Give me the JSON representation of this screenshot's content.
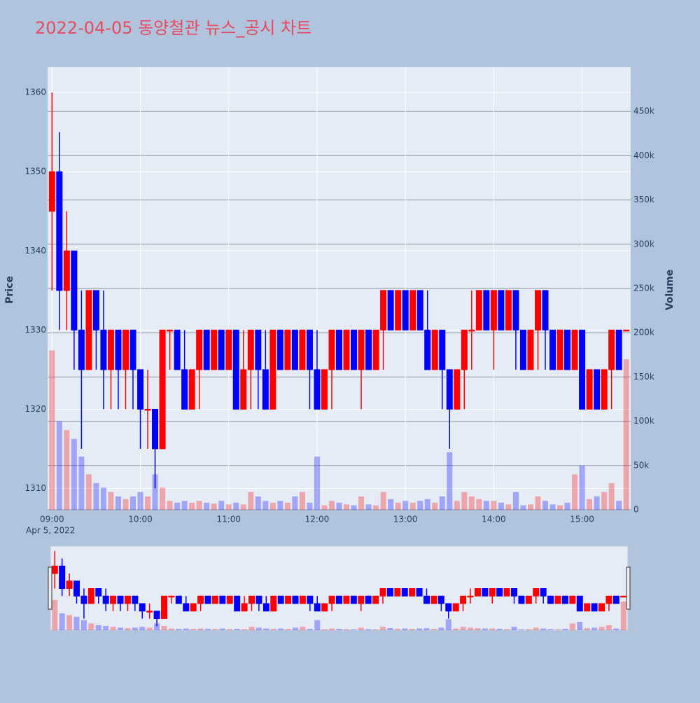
{
  "chart_data": {
    "type": "candlestick",
    "title": "2022-04-05 동양철관 뉴스_공시 차트",
    "yaxis_title": "Price",
    "y2axis_title": "Volume",
    "date_label": "Apr 5, 2022",
    "increasing_color": "#ff0000",
    "decreasing_color": "#0000ff",
    "x": [
      "09:00",
      "09:05",
      "09:10",
      "09:15",
      "09:20",
      "09:25",
      "09:30",
      "09:35",
      "09:40",
      "09:45",
      "09:50",
      "09:55",
      "10:00",
      "10:05",
      "10:10",
      "10:15",
      "10:20",
      "10:25",
      "10:30",
      "10:35",
      "10:40",
      "10:45",
      "10:50",
      "10:55",
      "11:00",
      "11:05",
      "11:10",
      "11:15",
      "11:20",
      "11:25",
      "11:30",
      "11:35",
      "11:40",
      "11:45",
      "11:50",
      "11:55",
      "12:00",
      "12:05",
      "12:10",
      "12:15",
      "12:20",
      "12:25",
      "12:30",
      "12:35",
      "12:40",
      "12:45",
      "12:50",
      "12:55",
      "13:00",
      "13:05",
      "13:10",
      "13:15",
      "13:20",
      "13:25",
      "13:30",
      "13:35",
      "13:40",
      "13:45",
      "13:50",
      "13:55",
      "14:00",
      "14:05",
      "14:10",
      "14:15",
      "14:20",
      "14:25",
      "14:30",
      "14:35",
      "14:40",
      "14:45",
      "14:50",
      "14:55",
      "15:00",
      "15:05",
      "15:10",
      "15:15",
      "15:20",
      "15:25",
      "15:30"
    ],
    "open": [
      1345,
      1350,
      1335,
      1340,
      1330,
      1325,
      1335,
      1330,
      1325,
      1330,
      1325,
      1330,
      1325,
      1320,
      1320,
      1315,
      1330,
      1330,
      1325,
      1320,
      1325,
      1330,
      1325,
      1330,
      1325,
      1330,
      1320,
      1325,
      1330,
      1325,
      1320,
      1330,
      1325,
      1330,
      1325,
      1330,
      1325,
      1320,
      1325,
      1330,
      1325,
      1330,
      1325,
      1330,
      1325,
      1330,
      1335,
      1330,
      1335,
      1330,
      1335,
      1330,
      1325,
      1330,
      1325,
      1320,
      1325,
      1330,
      1330,
      1335,
      1330,
      1335,
      1330,
      1335,
      1330,
      1325,
      1330,
      1335,
      1330,
      1325,
      1330,
      1325,
      1330,
      1320,
      1325,
      1320,
      1325,
      1330,
      1330
    ],
    "high": [
      1360,
      1355,
      1345,
      1340,
      1335,
      1335,
      1335,
      1335,
      1330,
      1330,
      1330,
      1330,
      1325,
      1325,
      1320,
      1330,
      1330,
      1330,
      1330,
      1325,
      1330,
      1330,
      1330,
      1330,
      1330,
      1330,
      1330,
      1330,
      1330,
      1330,
      1330,
      1330,
      1330,
      1330,
      1330,
      1330,
      1330,
      1325,
      1330,
      1330,
      1330,
      1330,
      1330,
      1330,
      1330,
      1335,
      1335,
      1335,
      1335,
      1335,
      1335,
      1335,
      1330,
      1330,
      1325,
      1325,
      1330,
      1335,
      1335,
      1335,
      1335,
      1335,
      1335,
      1335,
      1330,
      1330,
      1335,
      1335,
      1330,
      1330,
      1330,
      1330,
      1330,
      1325,
      1325,
      1325,
      1330,
      1330,
      1330
    ],
    "low": [
      1335,
      1330,
      1330,
      1325,
      1315,
      1325,
      1325,
      1320,
      1320,
      1320,
      1320,
      1320,
      1315,
      1315,
      1310,
      1315,
      1325,
      1325,
      1320,
      1320,
      1320,
      1325,
      1325,
      1325,
      1325,
      1320,
      1320,
      1320,
      1320,
      1320,
      1320,
      1325,
      1325,
      1325,
      1325,
      1320,
      1320,
      1320,
      1320,
      1325,
      1325,
      1325,
      1320,
      1325,
      1325,
      1325,
      1330,
      1330,
      1330,
      1330,
      1330,
      1325,
      1325,
      1320,
      1315,
      1320,
      1320,
      1325,
      1330,
      1330,
      1325,
      1330,
      1330,
      1325,
      1325,
      1325,
      1325,
      1325,
      1325,
      1325,
      1325,
      1325,
      1320,
      1320,
      1320,
      1320,
      1320,
      1325,
      1330
    ],
    "close": [
      1350,
      1335,
      1340,
      1330,
      1325,
      1335,
      1330,
      1325,
      1330,
      1325,
      1330,
      1325,
      1320,
      1320,
      1315,
      1330,
      1330,
      1325,
      1320,
      1325,
      1330,
      1325,
      1330,
      1325,
      1330,
      1320,
      1325,
      1330,
      1325,
      1320,
      1330,
      1325,
      1330,
      1325,
      1330,
      1325,
      1320,
      1325,
      1330,
      1325,
      1330,
      1325,
      1330,
      1325,
      1330,
      1335,
      1330,
      1335,
      1330,
      1335,
      1330,
      1325,
      1330,
      1325,
      1320,
      1325,
      1330,
      1330,
      1335,
      1330,
      1335,
      1330,
      1335,
      1330,
      1325,
      1330,
      1335,
      1330,
      1325,
      1330,
      1325,
      1330,
      1320,
      1325,
      1320,
      1325,
      1330,
      1325,
      1330
    ],
    "volume": [
      180000,
      100000,
      90000,
      80000,
      60000,
      40000,
      30000,
      25000,
      20000,
      15000,
      12000,
      15000,
      20000,
      15000,
      40000,
      25000,
      10000,
      8000,
      10000,
      8000,
      10000,
      8000,
      7000,
      10000,
      6000,
      8000,
      6000,
      20000,
      15000,
      10000,
      8000,
      10000,
      8000,
      15000,
      20000,
      8000,
      60000,
      5000,
      10000,
      8000,
      6000,
      5000,
      15000,
      6000,
      5000,
      20000,
      12000,
      8000,
      10000,
      8000,
      10000,
      12000,
      8000,
      15000,
      65000,
      10000,
      20000,
      15000,
      12000,
      10000,
      10000,
      8000,
      6000,
      20000,
      5000,
      6000,
      15000,
      10000,
      6000,
      5000,
      8000,
      40000,
      50000,
      12000,
      15000,
      20000,
      30000,
      10000,
      170000
    ],
    "xlim": [
      "08:57",
      "15:33"
    ],
    "xticks": [
      "09:00",
      "10:00",
      "11:00",
      "12:00",
      "13:00",
      "14:00",
      "15:00"
    ],
    "ylim": [
      1307.3,
      1363.2
    ],
    "yticks": [
      1310,
      1320,
      1330,
      1340,
      1350,
      1360
    ],
    "y2lim": [
      0,
      500000
    ],
    "y2ticks": [
      0,
      {
        "value": 50000,
        "label": "50k"
      },
      {
        "value": 100000,
        "label": "100k"
      },
      {
        "value": 150000,
        "label": "150k"
      },
      {
        "value": 200000,
        "label": "200k"
      },
      {
        "value": 250000,
        "label": "250k"
      },
      {
        "value": 300000,
        "label": "300k"
      },
      {
        "value": 350000,
        "label": "350k"
      },
      {
        "value": 400000,
        "label": "400k"
      },
      {
        "value": 450000,
        "label": "450k"
      }
    ],
    "grid": true
  }
}
